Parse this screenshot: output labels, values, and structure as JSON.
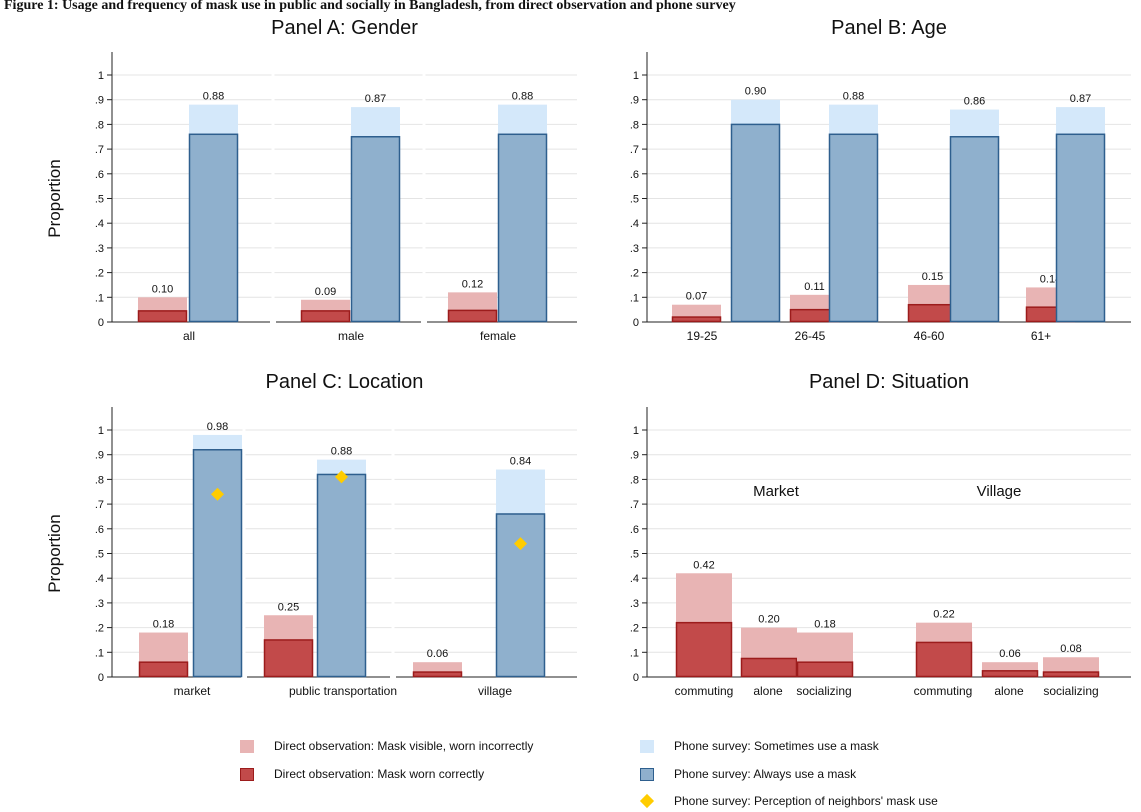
{
  "caption": "Figure 1: Usage and frequency of mask use in public and socially in Bangladesh, from direct observation and phone survey",
  "colors": {
    "dir_incorrect": "#e8b4b4",
    "dir_correct": "#c24a4a",
    "dir_correct_edge": "#9c1c1c",
    "ph_sometimes": "#d4e8fa",
    "ph_always": "#8fb0cd",
    "ph_always_edge": "#2e5f8e",
    "perception": "#ffcc00"
  },
  "legend": {
    "dir_incorrect": "Direct observation: Mask visible, worn incorrectly",
    "dir_correct": "Direct observation: Mask worn correctly",
    "ph_sometimes": "Phone survey: Sometimes use a mask",
    "ph_always": "Phone survey: Always use a mask",
    "perception": "Phone survey: Perception of neighbors' mask use"
  },
  "chart_data": [
    {
      "type": "bar",
      "title": "Panel A: Gender",
      "ylabel": "Proportion",
      "ylim": [
        0,
        1
      ],
      "yticks": [
        "0",
        ".1",
        ".2",
        ".3",
        ".4",
        ".5",
        ".6",
        ".7",
        ".8",
        ".9",
        "1"
      ],
      "categories": [
        "all",
        "male",
        "female"
      ],
      "series": [
        {
          "name": "Direct observation: Mask visible, worn incorrectly",
          "stacked_total": [
            0.1,
            0.09,
            0.12
          ],
          "labels": [
            "0.10",
            "0.09",
            "0.12"
          ]
        },
        {
          "name": "Direct observation: Mask worn correctly",
          "values": [
            0.045,
            0.045,
            0.047
          ]
        },
        {
          "name": "Phone survey: Sometimes use a mask",
          "stacked_total": [
            0.88,
            0.87,
            0.88
          ],
          "labels": [
            "0.88",
            "0.87",
            "0.88"
          ]
        },
        {
          "name": "Phone survey: Always use a mask",
          "values": [
            0.76,
            0.75,
            0.76
          ]
        }
      ]
    },
    {
      "type": "bar",
      "title": "Panel B: Age",
      "ylabel": "",
      "ylim": [
        0,
        1
      ],
      "yticks": [
        "0",
        ".1",
        ".2",
        ".3",
        ".4",
        ".5",
        ".6",
        ".7",
        ".8",
        ".9",
        "1"
      ],
      "categories": [
        "19-25",
        "26-45",
        "46-60",
        "61+"
      ],
      "series": [
        {
          "name": "Direct observation: Mask visible, worn incorrectly",
          "stacked_total": [
            0.07,
            0.11,
            0.15,
            0.14
          ],
          "labels": [
            "0.07",
            "0.11",
            "0.15",
            "0.14"
          ]
        },
        {
          "name": "Direct observation: Mask worn correctly",
          "values": [
            0.02,
            0.05,
            0.07,
            0.06
          ]
        },
        {
          "name": "Phone survey: Sometimes use a mask",
          "stacked_total": [
            0.9,
            0.88,
            0.86,
            0.87
          ],
          "labels": [
            "0.90",
            "0.88",
            "0.86",
            "0.87"
          ]
        },
        {
          "name": "Phone survey: Always use a mask",
          "values": [
            0.8,
            0.76,
            0.75,
            0.76
          ]
        }
      ]
    },
    {
      "type": "bar",
      "title": "Panel C: Location",
      "ylabel": "Proportion",
      "ylim": [
        0,
        1
      ],
      "yticks": [
        "0",
        ".1",
        ".2",
        ".3",
        ".4",
        ".5",
        ".6",
        ".7",
        ".8",
        ".9",
        "1"
      ],
      "categories": [
        "market",
        "public transportation",
        "village"
      ],
      "series": [
        {
          "name": "Direct observation: Mask visible, worn incorrectly",
          "stacked_total": [
            0.18,
            0.25,
            0.06
          ],
          "labels": [
            "0.18",
            "0.25",
            "0.06"
          ]
        },
        {
          "name": "Direct observation: Mask worn correctly",
          "values": [
            0.06,
            0.15,
            0.02
          ]
        },
        {
          "name": "Phone survey: Sometimes use a mask",
          "stacked_total": [
            0.98,
            0.88,
            0.84
          ],
          "labels": [
            "0.98",
            "0.88",
            "0.84"
          ]
        },
        {
          "name": "Phone survey: Always use a mask",
          "values": [
            0.92,
            0.82,
            0.66
          ]
        },
        {
          "name": "Phone survey: Perception of neighbors' mask use",
          "values": [
            0.74,
            0.81,
            0.54
          ]
        }
      ]
    },
    {
      "type": "bar",
      "title": "Panel D: Situation",
      "ylabel": "",
      "ylim": [
        0,
        1
      ],
      "yticks": [
        "0",
        ".1",
        ".2",
        ".3",
        ".4",
        ".5",
        ".6",
        ".7",
        ".8",
        ".9",
        "1"
      ],
      "groups": [
        "Market",
        "Village"
      ],
      "categories": [
        "commuting",
        "alone",
        "socializing",
        "commuting",
        "alone",
        "socializing"
      ],
      "series": [
        {
          "name": "Direct observation: Mask visible, worn incorrectly",
          "stacked_total": [
            0.42,
            0.2,
            0.18,
            0.22,
            0.06,
            0.08
          ],
          "labels": [
            "0.42",
            "0.20",
            "0.18",
            "0.22",
            "0.06",
            "0.08"
          ]
        },
        {
          "name": "Direct observation: Mask worn correctly",
          "values": [
            0.22,
            0.075,
            0.06,
            0.14,
            0.025,
            0.02
          ]
        }
      ]
    }
  ]
}
